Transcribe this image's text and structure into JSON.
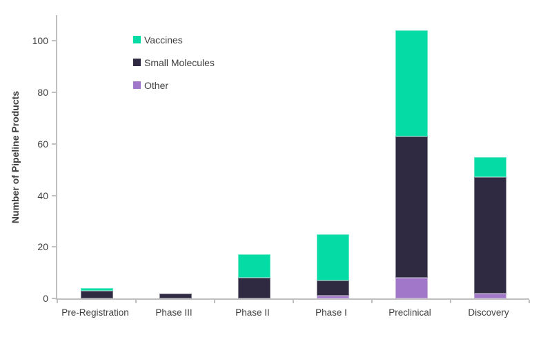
{
  "chart_data": {
    "type": "bar",
    "stacked": true,
    "title": "",
    "xlabel": "",
    "ylabel": "Number of Pipeline Products",
    "categories": [
      "Pre-Registration",
      "Phase III",
      "Phase II",
      "Phase I",
      "Preclinical",
      "Discovery"
    ],
    "series": [
      {
        "name": "Other",
        "color": "#A177C9",
        "values": [
          0,
          0,
          0,
          1,
          8,
          2
        ]
      },
      {
        "name": "Small Molecules",
        "color": "#2F2A41",
        "values": [
          3,
          2,
          8,
          6,
          55,
          45
        ]
      },
      {
        "name": "Vaccines",
        "color": "#05DBA4",
        "values": [
          1,
          0,
          9,
          18,
          41,
          8
        ]
      }
    ],
    "totals": [
      4,
      2,
      17,
      25,
      104,
      55
    ],
    "legend_order": [
      "Vaccines",
      "Small Molecules",
      "Other"
    ],
    "ylim": [
      0,
      110
    ],
    "yticks": [
      0,
      20,
      40,
      60,
      80,
      100
    ],
    "grid": false,
    "legend_position": "top-left-inside",
    "axis_color": "#BFBFBF",
    "text_color": "#404040"
  }
}
